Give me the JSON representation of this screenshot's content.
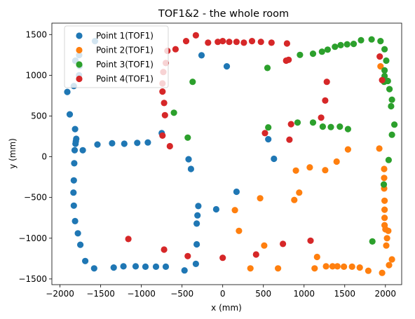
{
  "chart_data": {
    "type": "scatter",
    "title": "TOF1&2 - the whole room",
    "xlabel": "x (mm)",
    "ylabel": "y (mm)",
    "xlim": [
      -2100,
      2200
    ],
    "ylim": [
      -1570,
      1640
    ],
    "xticks": [
      -2000,
      -1500,
      -1000,
      -500,
      0,
      500,
      1000,
      1500,
      2000
    ],
    "yticks": [
      -1500,
      -1000,
      -500,
      0,
      500,
      1000,
      1500
    ],
    "xtick_labels": [
      "−2000",
      "−1500",
      "−1000",
      "−500",
      "0",
      "500",
      "1000",
      "1500",
      "2000"
    ],
    "ytick_labels": [
      "−1500",
      "−1000",
      "−500",
      "0",
      "500",
      "1000",
      "1500"
    ],
    "grid": false,
    "legend_position": "upper-left",
    "series": [
      {
        "name": "Point 1(TOF1)",
        "color": "#1f77b4",
        "points": [
          [
            -1570,
            1420
          ],
          [
            -1765,
            1248
          ],
          [
            -1810,
            1180
          ],
          [
            -1812,
            1178
          ],
          [
            -1760,
            1113
          ],
          [
            -1766,
            1000
          ],
          [
            -1830,
            868
          ],
          [
            -1910,
            796
          ],
          [
            -1880,
            520
          ],
          [
            -1815,
            340
          ],
          [
            -1800,
            220
          ],
          [
            -1805,
            190
          ],
          [
            -1810,
            160
          ],
          [
            -1820,
            80
          ],
          [
            -1825,
            -80
          ],
          [
            -1830,
            -290
          ],
          [
            -1835,
            -440
          ],
          [
            -1830,
            -600
          ],
          [
            -1815,
            -790
          ],
          [
            -1780,
            -940
          ],
          [
            -1750,
            -1080
          ],
          [
            -1690,
            -1280
          ],
          [
            -1580,
            -1370
          ],
          [
            -1340,
            -1360
          ],
          [
            -1220,
            -1345
          ],
          [
            -1070,
            -1345
          ],
          [
            -950,
            -1350
          ],
          [
            -820,
            -1350
          ],
          [
            -700,
            -1350
          ],
          [
            -470,
            -1395
          ],
          [
            -330,
            -1315
          ],
          [
            -320,
            -1075
          ],
          [
            -320,
            -820
          ],
          [
            -310,
            -720
          ],
          [
            -300,
            -605
          ],
          [
            -80,
            -645
          ],
          [
            -260,
            1245
          ],
          [
            50,
            1110
          ],
          [
            -390,
            -150
          ],
          [
            -420,
            -30
          ],
          [
            -750,
            290
          ],
          [
            -1720,
            80
          ],
          [
            -1540,
            150
          ],
          [
            -1360,
            165
          ],
          [
            -1210,
            160
          ],
          [
            -1050,
            170
          ],
          [
            -920,
            175
          ],
          [
            170,
            -430
          ],
          [
            560,
            215
          ],
          [
            630,
            -25
          ]
        ]
      },
      {
        "name": "Point 2(TOF1)",
        "color": "#ff7f0e",
        "points": [
          [
            1940,
            1110
          ],
          [
            1925,
            100
          ],
          [
            1985,
            -150
          ],
          [
            1985,
            -260
          ],
          [
            1985,
            -390
          ],
          [
            1990,
            -540
          ],
          [
            1990,
            -650
          ],
          [
            1990,
            -750
          ],
          [
            1990,
            -840
          ],
          [
            2000,
            -890
          ],
          [
            2035,
            -910
          ],
          [
            2020,
            -1000
          ],
          [
            2010,
            -1090
          ],
          [
            2080,
            -1260
          ],
          [
            2045,
            -1330
          ],
          [
            1960,
            -1425
          ],
          [
            1790,
            -1400
          ],
          [
            1685,
            -1360
          ],
          [
            1590,
            -1350
          ],
          [
            1490,
            -1350
          ],
          [
            1410,
            -1345
          ],
          [
            1350,
            -1345
          ],
          [
            1270,
            -1345
          ],
          [
            1130,
            -1370
          ],
          [
            1160,
            -1230
          ],
          [
            680,
            -1370
          ],
          [
            340,
            -1370
          ],
          [
            510,
            -1090
          ],
          [
            200,
            -910
          ],
          [
            150,
            -655
          ],
          [
            460,
            -510
          ],
          [
            880,
            -530
          ],
          [
            940,
            -440
          ],
          [
            900,
            -170
          ],
          [
            1070,
            -130
          ],
          [
            1260,
            -165
          ],
          [
            1400,
            -60
          ],
          [
            1540,
            90
          ]
        ]
      },
      {
        "name": "Point 3(TOF1)",
        "color": "#2ca02c",
        "points": [
          [
            -370,
            920
          ],
          [
            -430,
            235
          ],
          [
            -600,
            540
          ],
          [
            550,
            1090
          ],
          [
            560,
            360
          ],
          [
            950,
            1250
          ],
          [
            1110,
            1265
          ],
          [
            1220,
            1290
          ],
          [
            1290,
            1315
          ],
          [
            1380,
            1350
          ],
          [
            1450,
            1370
          ],
          [
            1530,
            1380
          ],
          [
            1610,
            1385
          ],
          [
            1700,
            1430
          ],
          [
            1830,
            1440
          ],
          [
            1940,
            1420
          ],
          [
            1990,
            1320
          ],
          [
            2010,
            1180
          ],
          [
            1990,
            1060
          ],
          [
            1990,
            990
          ],
          [
            1985,
            920
          ],
          [
            2030,
            930
          ],
          [
            2050,
            830
          ],
          [
            2080,
            700
          ],
          [
            2070,
            620
          ],
          [
            2110,
            395
          ],
          [
            2080,
            270
          ],
          [
            2040,
            -40
          ],
          [
            1980,
            -340
          ],
          [
            1840,
            -1040
          ],
          [
            920,
            420
          ],
          [
            1110,
            420
          ],
          [
            1230,
            370
          ],
          [
            1330,
            365
          ],
          [
            1440,
            370
          ],
          [
            1540,
            340
          ]
        ]
      },
      {
        "name": "Point 4(TOF1)",
        "color": "#d62728",
        "points": [
          [
            -330,
            1490
          ],
          [
            -450,
            1420
          ],
          [
            -580,
            1320
          ],
          [
            -680,
            1300
          ],
          [
            -700,
            1150
          ],
          [
            -730,
            1040
          ],
          [
            -740,
            900
          ],
          [
            -740,
            800
          ],
          [
            -720,
            660
          ],
          [
            -710,
            510
          ],
          [
            -740,
            260
          ],
          [
            -650,
            130
          ],
          [
            -180,
            1400
          ],
          [
            -60,
            1410
          ],
          [
            0,
            1420
          ],
          [
            80,
            1410
          ],
          [
            170,
            1410
          ],
          [
            260,
            1400
          ],
          [
            360,
            1420
          ],
          [
            470,
            1410
          ],
          [
            600,
            1400
          ],
          [
            790,
            1390
          ],
          [
            780,
            1180
          ],
          [
            810,
            1190
          ],
          [
            1280,
            920
          ],
          [
            1260,
            690
          ],
          [
            1210,
            480
          ],
          [
            820,
            210
          ],
          [
            840,
            400
          ],
          [
            520,
            290
          ],
          [
            -1160,
            -1010
          ],
          [
            -720,
            -1140
          ],
          [
            -430,
            -1220
          ],
          [
            0,
            -1240
          ],
          [
            410,
            -1200
          ],
          [
            740,
            -1070
          ],
          [
            1080,
            -1030
          ],
          [
            1960,
            940
          ],
          [
            1930,
            1230
          ]
        ]
      }
    ]
  }
}
